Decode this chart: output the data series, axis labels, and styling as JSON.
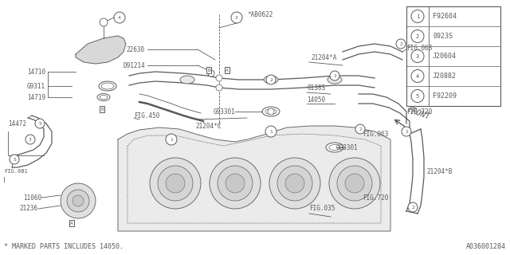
{
  "bg_color": "#ffffff",
  "line_color": "#5a5a5a",
  "fig_width": 6.4,
  "fig_height": 3.2,
  "dpi": 100,
  "legend_items": [
    {
      "num": "1",
      "code": "F92604"
    },
    {
      "num": "2",
      "code": "0923S"
    },
    {
      "num": "3",
      "code": "J20604"
    },
    {
      "num": "4",
      "code": "J20882"
    },
    {
      "num": "5",
      "code": "F92209"
    }
  ],
  "footer_text": "* MARKED PARTS INCLUDES 14050.",
  "part_number": "A036001284"
}
